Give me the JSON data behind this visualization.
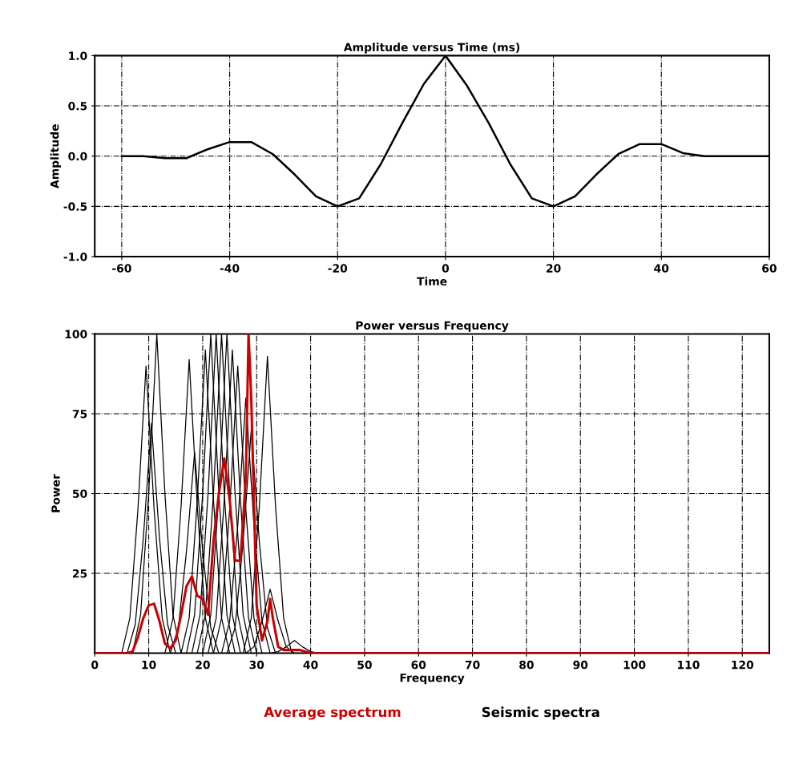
{
  "chart_data": [
    {
      "type": "line",
      "title": "Amplitude versus Time (ms)",
      "xlabel": "Time",
      "ylabel": "Amplitude",
      "x": [
        -60,
        -56,
        -52,
        -48,
        -44,
        -40,
        -36,
        -32,
        -28,
        -24,
        -20,
        -16,
        -12,
        -8,
        -4,
        0,
        4,
        8,
        12,
        16,
        20,
        24,
        28,
        32,
        36,
        40,
        44,
        48,
        52,
        56,
        60
      ],
      "series": [
        {
          "color": "#000000",
          "values": [
            0,
            0,
            -0.02,
            -0.02,
            0.07,
            0.14,
            0.14,
            0.02,
            -0.18,
            -0.4,
            -0.5,
            -0.42,
            -0.08,
            0.33,
            0.72,
            1.0,
            0.7,
            0.33,
            -0.08,
            -0.42,
            -0.5,
            -0.4,
            -0.18,
            0.02,
            0.12,
            0.12,
            0.03,
            0,
            0,
            0,
            0
          ]
        }
      ],
      "xlim": [
        -65,
        60
      ],
      "ylim": [
        -1.0,
        1.0
      ],
      "xticks": [
        -60,
        -40,
        -20,
        0,
        20,
        40,
        60
      ],
      "yticks": [
        {
          "value": -1.0,
          "label": "-1.0"
        },
        {
          "value": -0.5,
          "label": "-0.5"
        },
        {
          "value": 0.0,
          "label": "0.0"
        },
        {
          "value": 0.5,
          "label": "0.5"
        },
        {
          "value": 1.0,
          "label": "1.0"
        }
      ],
      "grid": true,
      "marker": "none",
      "line_style": "solid"
    },
    {
      "type": "line",
      "title": "Power versus Frequency",
      "xlabel": "Frequency",
      "ylabel": "Power",
      "series": [
        {
          "name": "Average spectrum",
          "color": "#cc0000",
          "x": [
            0,
            6,
            7,
            8,
            9,
            10,
            11,
            12,
            13,
            14,
            15,
            16,
            17,
            18,
            19,
            20,
            21,
            22,
            23,
            24,
            25,
            26,
            27,
            28,
            28.5,
            29,
            30,
            31,
            32,
            32.5,
            33,
            34,
            35,
            38,
            40,
            125
          ],
          "values": [
            0,
            0,
            0.5,
            5,
            11,
            15,
            15.5,
            10,
            3,
            1.5,
            4,
            12,
            21,
            24,
            18,
            17,
            12,
            35,
            50,
            61,
            48,
            29,
            29,
            55,
            100,
            80,
            15,
            4,
            10,
            17,
            11,
            2,
            1,
            1,
            0,
            0
          ]
        },
        {
          "name": "Seismic spectra",
          "color": "#000000",
          "x": [
            5,
            6.5,
            8,
            9.5,
            11,
            12.5,
            14
          ],
          "values": [
            0,
            11,
            45,
            90,
            45,
            11,
            0
          ]
        },
        {
          "color": "#000000",
          "x": [
            7,
            8.5,
            10,
            11.5,
            13,
            14.5,
            16
          ],
          "values": [
            0,
            12,
            50,
            100,
            50,
            12,
            0
          ]
        },
        {
          "color": "#000000",
          "x": [
            6,
            7.5,
            9,
            10.5,
            12,
            13.5,
            15
          ],
          "values": [
            0,
            9,
            36,
            72,
            36,
            9,
            0
          ]
        },
        {
          "color": "#000000",
          "x": [
            13,
            14.5,
            16,
            17.5,
            19,
            20.5,
            22
          ],
          "values": [
            0,
            11,
            46,
            92,
            46,
            11,
            0
          ]
        },
        {
          "color": "#000000",
          "x": [
            14,
            15.5,
            17,
            18.5,
            20,
            21.5,
            23
          ],
          "values": [
            0,
            8,
            32,
            63,
            32,
            8,
            0
          ]
        },
        {
          "color": "#000000",
          "x": [
            16,
            17.5,
            19,
            20.5,
            22,
            23.5,
            25
          ],
          "values": [
            0,
            11,
            48,
            95,
            48,
            11,
            0
          ]
        },
        {
          "color": "#000000",
          "x": [
            17,
            18.5,
            20,
            21.5,
            23,
            24.5,
            26
          ],
          "values": [
            0,
            12,
            50,
            100,
            50,
            12,
            0
          ]
        },
        {
          "color": "#000000",
          "x": [
            18,
            19.5,
            21,
            22.5,
            24,
            25.5,
            27
          ],
          "values": [
            0,
            12,
            50,
            100,
            50,
            12,
            0
          ]
        },
        {
          "color": "#000000",
          "x": [
            19,
            20.5,
            22,
            23.5,
            25,
            26.5,
            28
          ],
          "values": [
            0,
            12,
            50,
            100,
            50,
            12,
            0
          ]
        },
        {
          "color": "#000000",
          "x": [
            20,
            21.5,
            23,
            24.5,
            26,
            27.5,
            29
          ],
          "values": [
            0,
            12,
            50,
            100,
            50,
            12,
            0
          ]
        },
        {
          "color": "#000000",
          "x": [
            21,
            22.5,
            24,
            25.5,
            27,
            28.5,
            30
          ],
          "values": [
            0,
            11,
            48,
            95,
            48,
            11,
            0
          ]
        },
        {
          "color": "#000000",
          "x": [
            22,
            23.5,
            25,
            26.5,
            28,
            29.5,
            31
          ],
          "values": [
            0,
            11,
            45,
            90,
            45,
            11,
            0
          ]
        },
        {
          "color": "#000000",
          "x": [
            23.5,
            25,
            26.5,
            28,
            29.5,
            31,
            32.5
          ],
          "values": [
            0,
            10,
            40,
            80,
            40,
            10,
            0
          ]
        },
        {
          "color": "#000000",
          "x": [
            24.5,
            26,
            27.5,
            29,
            30.5,
            32,
            33.5
          ],
          "values": [
            0,
            8,
            35,
            70,
            35,
            8,
            0
          ]
        },
        {
          "color": "#000000",
          "x": [
            27.5,
            29,
            30.5,
            32,
            33.5,
            35,
            36.5
          ],
          "values": [
            0,
            11,
            46,
            93,
            46,
            11,
            0
          ]
        },
        {
          "color": "#000000",
          "x": [
            28,
            29.5,
            31,
            32.5,
            34,
            35.5,
            37
          ],
          "values": [
            0,
            2,
            10,
            20,
            10,
            2,
            0
          ]
        },
        {
          "color": "#000000",
          "x": [
            32.5,
            34,
            35.5,
            37,
            38.5,
            40,
            41.5
          ],
          "values": [
            0,
            0.5,
            2,
            4,
            2,
            0.5,
            0
          ]
        }
      ],
      "xlim": [
        0,
        125
      ],
      "ylim": [
        0,
        100
      ],
      "xticks": [
        0,
        10,
        20,
        30,
        40,
        50,
        60,
        70,
        80,
        90,
        100,
        110,
        120
      ],
      "yticks": [
        {
          "value": 25,
          "label": "25"
        },
        {
          "value": 50,
          "label": "50"
        },
        {
          "value": 75,
          "label": "75"
        },
        {
          "value": 100,
          "label": "100"
        }
      ],
      "grid": true,
      "legend": "bottom",
      "marker": "none",
      "line_style": "solid"
    }
  ]
}
